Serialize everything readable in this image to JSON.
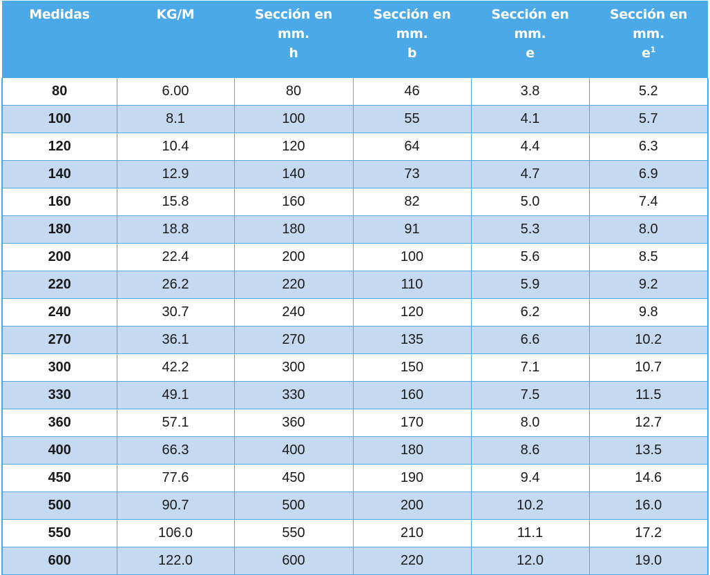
{
  "colors": {
    "header_bg": "#4aa9e6",
    "header_text": "#ffffff",
    "row_alt_bg": "#c5daf0",
    "row_bg": "#ffffff",
    "grid_line": "#4aa9e6"
  },
  "table": {
    "headers": [
      {
        "lines": [
          "Medidas"
        ],
        "sup": ""
      },
      {
        "lines": [
          "KG/M"
        ],
        "sup": ""
      },
      {
        "lines": [
          "Sección en",
          "mm.",
          "h"
        ],
        "sup": ""
      },
      {
        "lines": [
          "Sección en",
          "mm.",
          "b"
        ],
        "sup": ""
      },
      {
        "lines": [
          "Sección en",
          "mm.",
          "e"
        ],
        "sup": ""
      },
      {
        "lines": [
          "Sección en",
          "mm.",
          "e"
        ],
        "sup": "1"
      }
    ],
    "rows": [
      [
        "80",
        "6.00",
        "80",
        "46",
        "3.8",
        "5.2"
      ],
      [
        "100",
        "8.1",
        "100",
        "55",
        "4.1",
        "5.7"
      ],
      [
        "120",
        "10.4",
        "120",
        "64",
        "4.4",
        "6.3"
      ],
      [
        "140",
        "12.9",
        "140",
        "73",
        "4.7",
        "6.9"
      ],
      [
        "160",
        "15.8",
        "160",
        "82",
        "5.0",
        "7.4"
      ],
      [
        "180",
        "18.8",
        "180",
        "91",
        "5.3",
        "8.0"
      ],
      [
        "200",
        "22.4",
        "200",
        "100",
        "5.6",
        "8.5"
      ],
      [
        "220",
        "26.2",
        "220",
        "110",
        "5.9",
        "9.2"
      ],
      [
        "240",
        "30.7",
        "240",
        "120",
        "6.2",
        "9.8"
      ],
      [
        "270",
        "36.1",
        "270",
        "135",
        "6.6",
        "10.2"
      ],
      [
        "300",
        "42.2",
        "300",
        "150",
        "7.1",
        "10.7"
      ],
      [
        "330",
        "49.1",
        "330",
        "160",
        "7.5",
        "11.5"
      ],
      [
        "360",
        "57.1",
        "360",
        "170",
        "8.0",
        "12.7"
      ],
      [
        "400",
        "66.3",
        "400",
        "180",
        "8.6",
        "13.5"
      ],
      [
        "450",
        "77.6",
        "450",
        "190",
        "9.4",
        "14.6"
      ],
      [
        "500",
        "90.7",
        "500",
        "200",
        "10.2",
        "16.0"
      ],
      [
        "550",
        "106.0",
        "550",
        "210",
        "11.1",
        "17.2"
      ],
      [
        "600",
        "122.0",
        "600",
        "220",
        "12.0",
        "19.0"
      ]
    ]
  }
}
